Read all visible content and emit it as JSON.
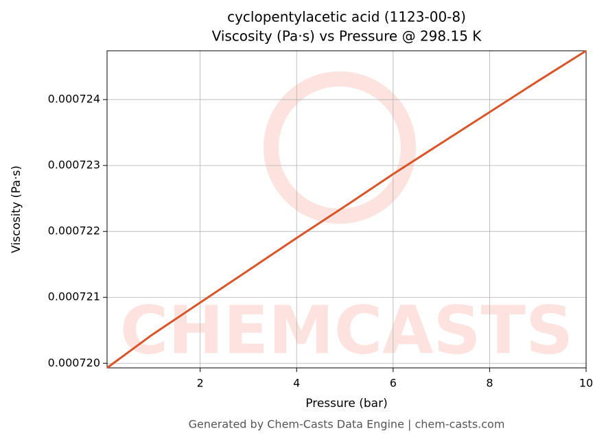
{
  "chart_data": {
    "type": "line",
    "title": "cyclopentylacetic acid (1123-00-8)",
    "subtitle": "Viscosity (Pa·s) vs Pressure @ 298.15 K",
    "x_label": "Pressure (bar)",
    "y_label": "Viscosity (Pa·s)",
    "footer": "Generated by Chem-Casts Data Engine | chem-casts.com",
    "watermark": "CHEMCASTS",
    "x": [
      0.07,
      1,
      2,
      3,
      4,
      5,
      6,
      7,
      8,
      9,
      10
    ],
    "series": [
      {
        "name": "Viscosity",
        "color": "#d95427",
        "values": [
          0.00071993,
          0.00072043,
          0.00072092,
          0.00072141,
          0.0007219,
          0.00072238,
          0.00072287,
          0.00072334,
          0.00072381,
          0.00072428,
          0.00072474
        ]
      }
    ],
    "xlim": [
      0.07,
      10
    ],
    "ylim": [
      0.00071993,
      0.00072474
    ],
    "xticks": [
      2,
      4,
      6,
      8,
      10
    ],
    "yticks": [
      {
        "value": 0.00072,
        "label": "0.000720"
      },
      {
        "value": 0.000721,
        "label": "0.000721"
      },
      {
        "value": 0.000722,
        "label": "0.000722"
      },
      {
        "value": 0.000723,
        "label": "0.000723"
      },
      {
        "value": 0.000724,
        "label": "0.000724"
      }
    ],
    "grid": true
  }
}
